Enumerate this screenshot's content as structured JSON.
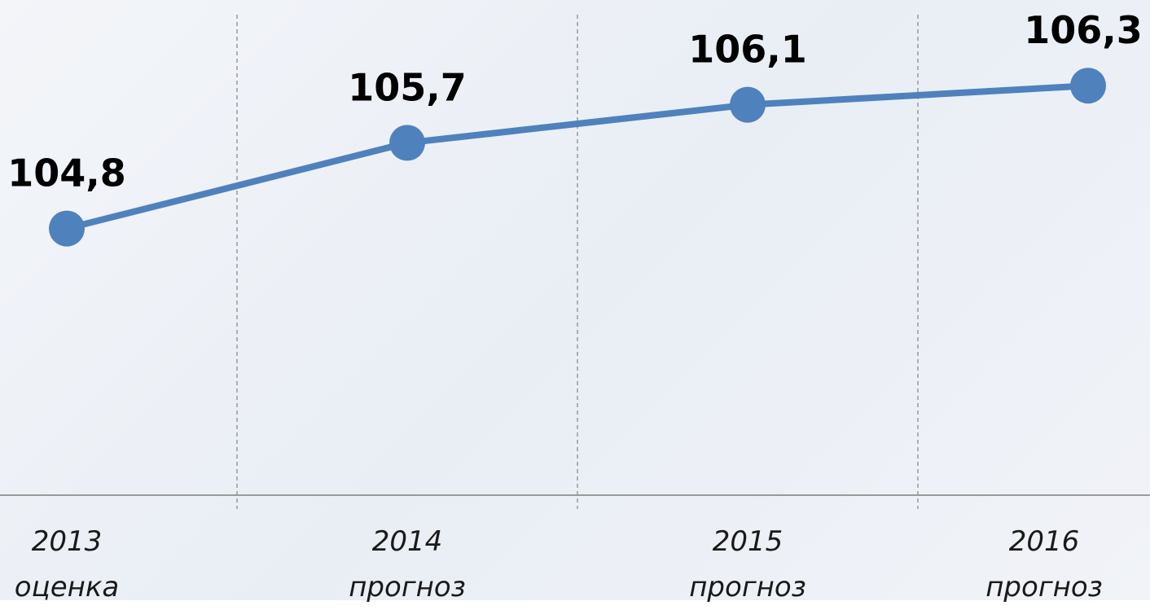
{
  "chart_data": {
    "type": "line",
    "categories": [
      "2013\nоценка",
      "2014\nпрогноз",
      "2015\nпрогноз",
      "2016\nпрогноз"
    ],
    "series": [
      {
        "color": "#4f81bd",
        "values": [
          104.8,
          105.7,
          106.1,
          106.3
        ],
        "value_labels": [
          "104,8",
          "105,7",
          "106,1",
          "106,3"
        ]
      }
    ],
    "ylim": [
      102,
      107.2
    ]
  }
}
